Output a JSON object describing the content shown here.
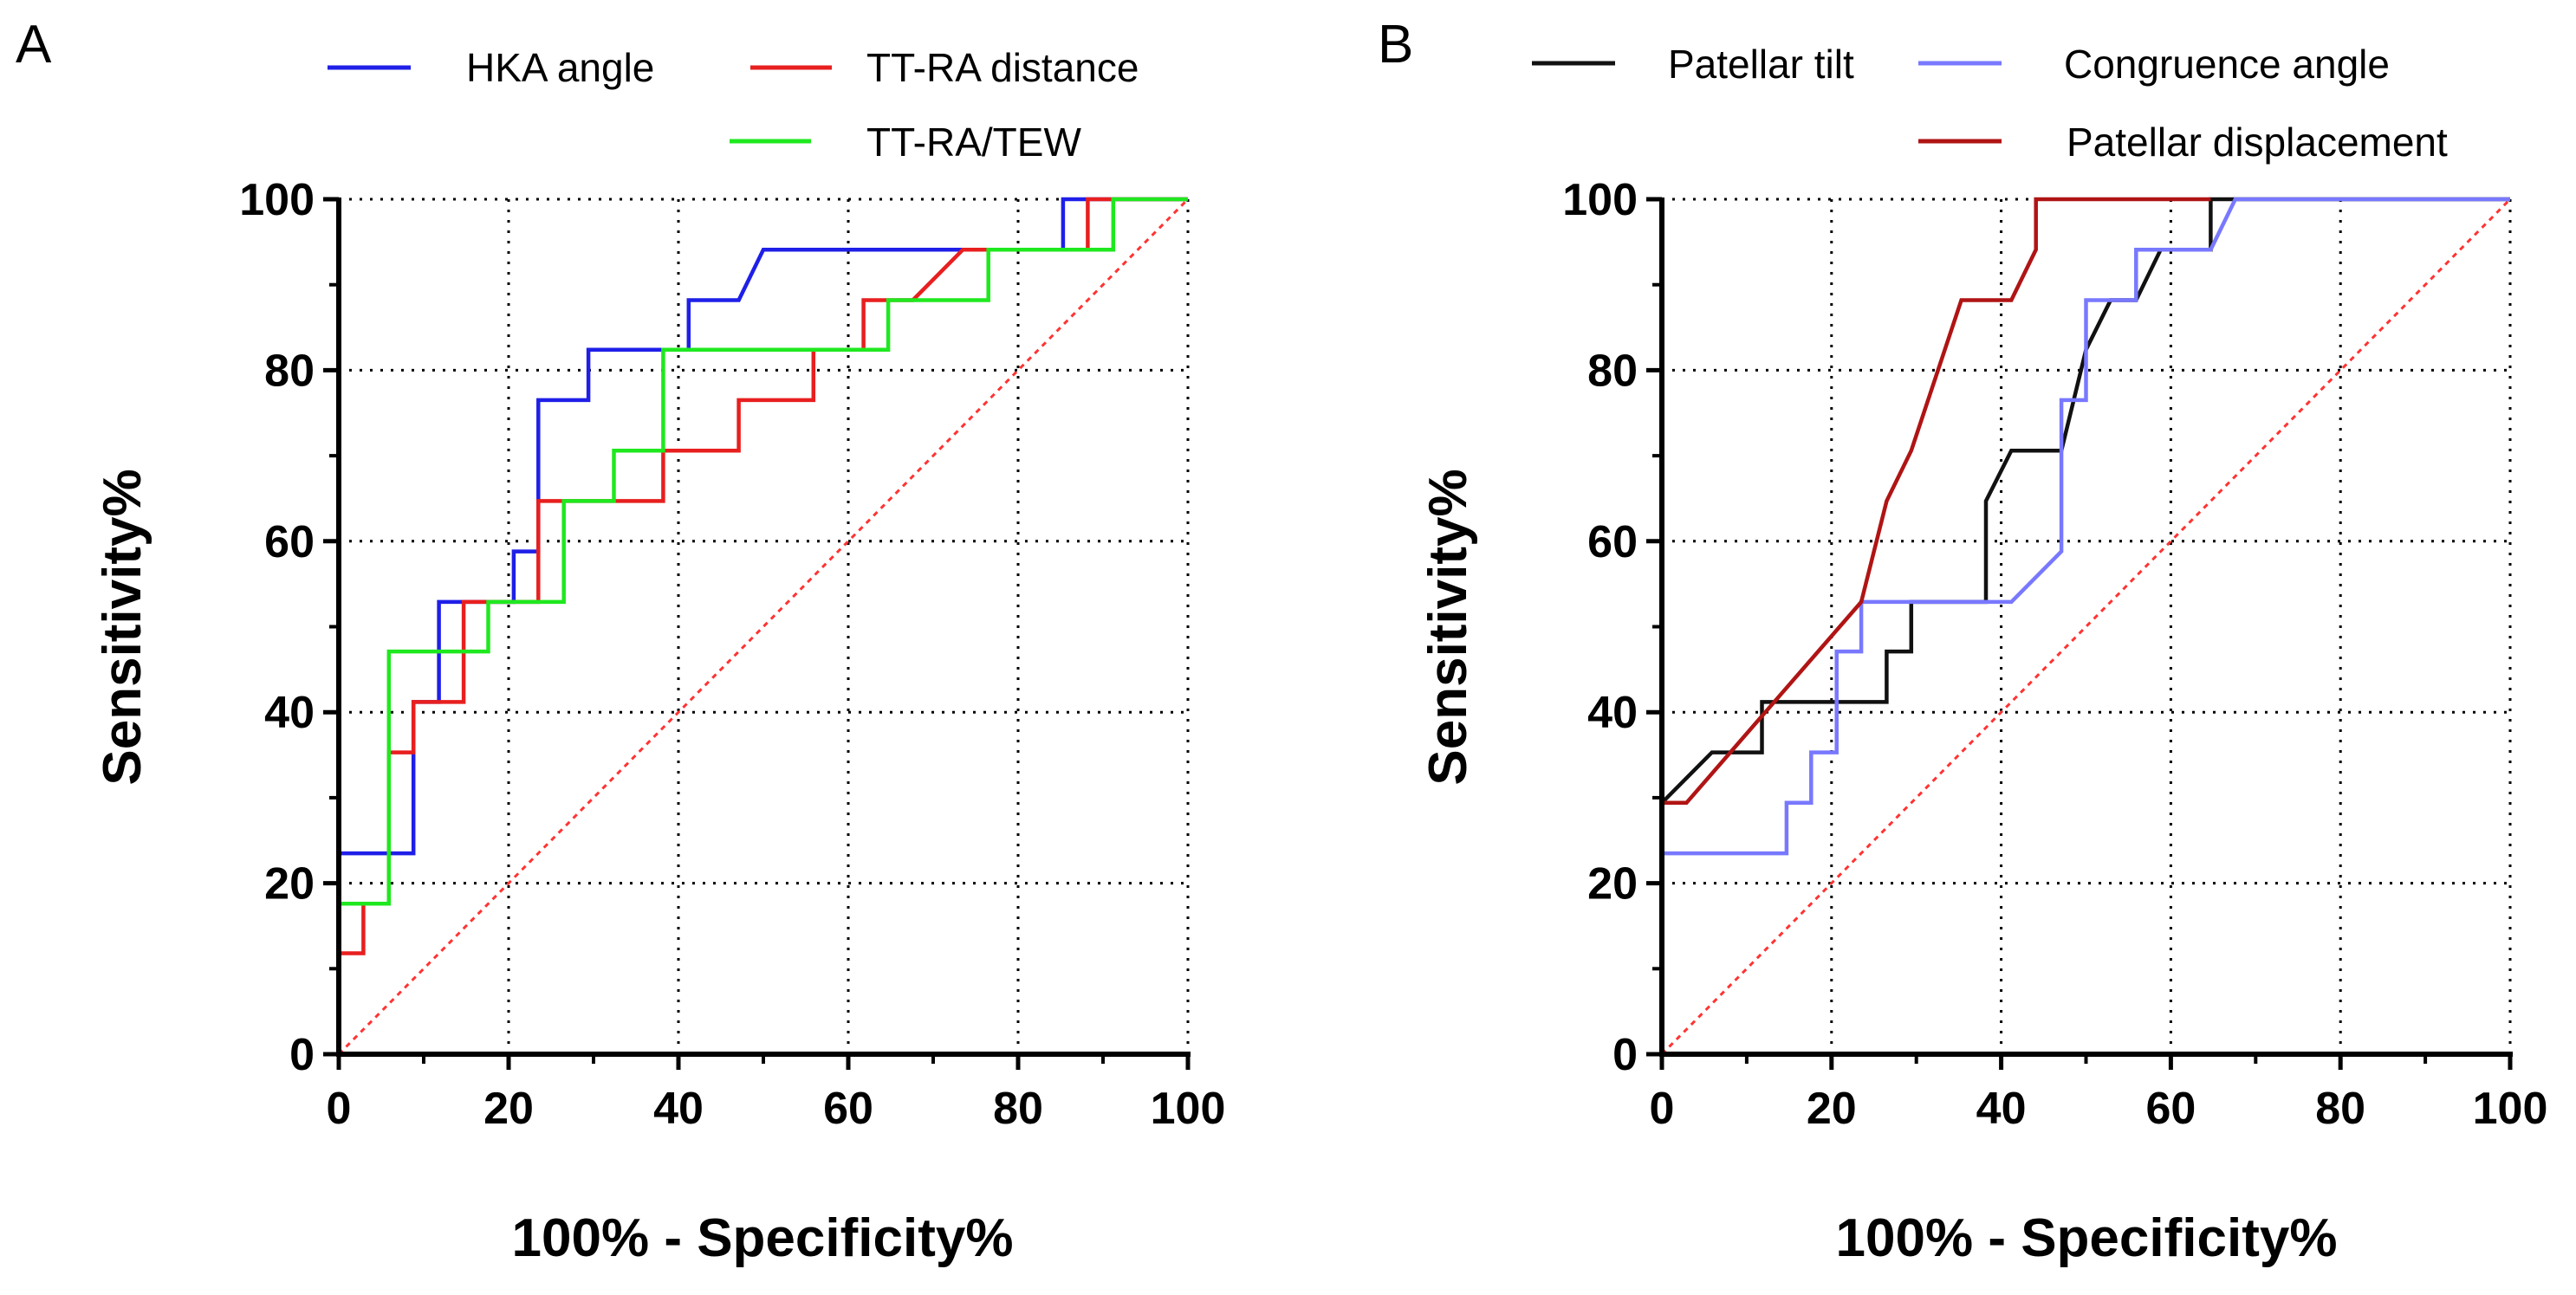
{
  "chart_data": [
    {
      "type": "line",
      "panel_label": "A",
      "xlabel": "100% - Specificity%",
      "ylabel": "Sensitivity%",
      "xlim": [
        0,
        100
      ],
      "ylim": [
        0,
        100
      ],
      "xticks": [
        "0",
        "20",
        "40",
        "60",
        "80",
        "100"
      ],
      "yticks": [
        "0",
        "20",
        "40",
        "60",
        "80",
        "100"
      ],
      "grid": true,
      "legend_position": "top",
      "series": [
        {
          "name": "HKA angle",
          "color": "#1f1fe8",
          "x": [
            0,
            0,
            8.8,
            8.8,
            11.8,
            11.8,
            20.6,
            20.6,
            23.5,
            23.5,
            29.4,
            29.4,
            41.2,
            41.2,
            47.1,
            50,
            85.3,
            85.3,
            100
          ],
          "y": [
            0,
            23.5,
            23.5,
            41.2,
            41.2,
            52.9,
            52.9,
            58.8,
            58.8,
            76.5,
            76.5,
            82.4,
            82.4,
            88.2,
            88.2,
            94.1,
            94.1,
            100,
            100
          ]
        },
        {
          "name": "TT-RA distance",
          "color": "#e81f1f",
          "x": [
            0,
            0,
            2.9,
            2.9,
            5.9,
            5.9,
            8.8,
            8.8,
            14.7,
            14.7,
            23.5,
            23.5,
            38.2,
            38.2,
            47.1,
            47.1,
            55.9,
            55.9,
            61.8,
            61.8,
            67.6,
            73.5,
            88.2,
            88.2,
            100
          ],
          "y": [
            0,
            11.8,
            11.8,
            17.6,
            17.6,
            35.3,
            35.3,
            41.2,
            41.2,
            52.9,
            52.9,
            64.7,
            64.7,
            70.6,
            70.6,
            76.5,
            76.5,
            82.4,
            82.4,
            88.2,
            88.2,
            94.1,
            94.1,
            100,
            100
          ]
        },
        {
          "name": "TT-RA/TEW",
          "color": "#1fe81f",
          "x": [
            0,
            0,
            5.9,
            5.9,
            17.6,
            17.6,
            26.5,
            26.5,
            32.4,
            32.4,
            38.2,
            38.2,
            64.7,
            64.7,
            76.5,
            76.5,
            91.2,
            91.2,
            100
          ],
          "y": [
            0,
            17.6,
            17.6,
            47.1,
            47.1,
            52.9,
            52.9,
            64.7,
            64.7,
            70.6,
            70.6,
            82.4,
            82.4,
            88.2,
            88.2,
            94.1,
            94.1,
            100,
            100
          ]
        },
        {
          "name": "reference",
          "color": "#ff3333",
          "dashed": true,
          "x": [
            0,
            100
          ],
          "y": [
            0,
            100
          ]
        }
      ]
    },
    {
      "type": "line",
      "panel_label": "B",
      "xlabel": "100% - Specificity%",
      "ylabel": "Sensitivity%",
      "xlim": [
        0,
        100
      ],
      "ylim": [
        0,
        100
      ],
      "xticks": [
        "0",
        "20",
        "40",
        "60",
        "80",
        "100"
      ],
      "yticks": [
        "0",
        "20",
        "40",
        "60",
        "80",
        "100"
      ],
      "grid": true,
      "legend_position": "top",
      "series": [
        {
          "name": "Patellar tilt",
          "color": "#111111",
          "x": [
            0,
            5.9,
            11.8,
            11.8,
            26.5,
            26.5,
            29.4,
            29.4,
            38.2,
            38.2,
            41.2,
            47.1,
            50,
            50,
            52.9,
            55.9,
            58.8,
            61.8,
            64.7,
            64.7,
            100
          ],
          "y": [
            29.4,
            35.3,
            35.3,
            41.2,
            41.2,
            47.1,
            47.1,
            52.9,
            52.9,
            64.7,
            70.6,
            70.6,
            82.4,
            82.4,
            88.2,
            88.2,
            94.1,
            94.1,
            94.1,
            100,
            100
          ]
        },
        {
          "name": "Congruence angle",
          "color": "#7878ff",
          "x": [
            0,
            14.7,
            14.7,
            17.6,
            17.6,
            20.6,
            20.6,
            23.5,
            23.5,
            41.2,
            47.1,
            47.1,
            50,
            50,
            55.9,
            55.9,
            64.7,
            67.6,
            100
          ],
          "y": [
            23.5,
            23.5,
            29.4,
            29.4,
            35.3,
            35.3,
            47.1,
            47.1,
            52.9,
            52.9,
            58.8,
            76.5,
            76.5,
            88.2,
            88.2,
            94.1,
            94.1,
            100,
            100
          ]
        },
        {
          "name": "Patellar displacement",
          "color": "#b01414",
          "x": [
            0,
            2.9,
            23.5,
            26.5,
            26.5,
            29.4,
            35.3,
            41.2,
            44.1,
            44.1,
            64.7
          ],
          "y": [
            29.4,
            29.4,
            52.9,
            64.7,
            64.7,
            70.6,
            88.2,
            88.2,
            94.1,
            100,
            100
          ]
        },
        {
          "name": "reference",
          "color": "#ff3333",
          "dashed": true,
          "x": [
            0,
            100
          ],
          "y": [
            0,
            100
          ]
        }
      ]
    }
  ]
}
